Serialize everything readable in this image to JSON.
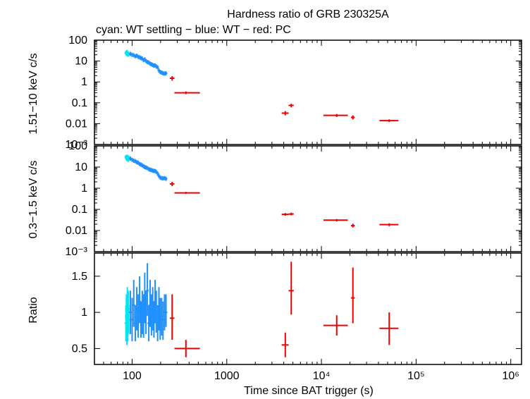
{
  "chart_data": {
    "type": "scatter",
    "title": "Hardness ratio of GRB 230325A",
    "subtitle": "cyan: WT settling − blue: WT − red: PC",
    "xlabel": "Time since BAT trigger (s)",
    "xscale": "log",
    "xlim": [
      40,
      1300000
    ],
    "x_tick_labels": [
      "100",
      "1000",
      "10⁴",
      "10⁵",
      "10⁶"
    ],
    "series_colors": {
      "wt_settling": "#00e5ee",
      "wt": "#1e90ff",
      "pc": "#ee0000"
    },
    "panels": [
      {
        "name": "hard",
        "ylabel": "1.51−10 keV c/s",
        "yscale": "log",
        "ylim": [
          0.001,
          100
        ],
        "y_tick_labels": [
          "100",
          "10",
          "1",
          "0.1",
          "0.01",
          "10⁻³"
        ],
        "wt_settling": [
          [
            86,
            25
          ],
          [
            87,
            22
          ],
          [
            88,
            27
          ],
          [
            89,
            24
          ],
          [
            90,
            20
          ],
          [
            91,
            23
          ],
          [
            92,
            21
          ]
        ],
        "wt": [
          [
            96,
            22
          ],
          [
            100,
            20
          ],
          [
            104,
            19
          ],
          [
            108,
            17
          ],
          [
            112,
            18
          ],
          [
            116,
            16
          ],
          [
            120,
            15
          ],
          [
            124,
            14
          ],
          [
            128,
            13
          ],
          [
            132,
            11
          ],
          [
            136,
            12
          ],
          [
            140,
            10
          ],
          [
            145,
            9
          ],
          [
            150,
            8.5
          ],
          [
            155,
            7.5
          ],
          [
            160,
            7
          ],
          [
            165,
            6.5
          ],
          [
            170,
            6
          ],
          [
            175,
            6.2
          ],
          [
            180,
            5.5
          ],
          [
            186,
            5
          ],
          [
            192,
            3.5
          ],
          [
            198,
            3
          ],
          [
            205,
            2.8
          ],
          [
            212,
            2.6
          ],
          [
            220,
            2.5
          ],
          [
            228,
            2.6
          ]
        ],
        "pc": [
          {
            "x": 265,
            "xlo": 250,
            "xhi": 280,
            "y": 1.5,
            "ylo": 1.15,
            "yhi": 1.9
          },
          {
            "x": 370,
            "xlo": 280,
            "xhi": 520,
            "y": 0.3,
            "ylo": 0.26,
            "yhi": 0.35
          },
          {
            "x": 4150,
            "xlo": 3800,
            "xhi": 4500,
            "y": 0.032,
            "ylo": 0.025,
            "yhi": 0.04
          },
          {
            "x": 4800,
            "xlo": 4500,
            "xhi": 5100,
            "y": 0.075,
            "ylo": 0.06,
            "yhi": 0.09
          },
          {
            "x": 14500,
            "xlo": 10500,
            "xhi": 19000,
            "y": 0.025,
            "ylo": 0.021,
            "yhi": 0.029
          },
          {
            "x": 21500,
            "xlo": 20500,
            "xhi": 22500,
            "y": 0.02,
            "ylo": 0.016,
            "yhi": 0.025
          },
          {
            "x": 52000,
            "xlo": 41000,
            "xhi": 65000,
            "y": 0.014,
            "ylo": 0.012,
            "yhi": 0.016
          }
        ]
      },
      {
        "name": "soft",
        "ylabel": "0.3−1.5 keV c/s",
        "yscale": "log",
        "ylim": [
          0.001,
          100
        ],
        "y_tick_labels": [
          "100",
          "10",
          "1",
          "0.1",
          "0.01",
          "10⁻³"
        ],
        "wt_settling": [
          [
            86,
            30
          ],
          [
            87,
            27
          ],
          [
            88,
            24
          ],
          [
            89,
            31
          ],
          [
            90,
            26
          ],
          [
            91,
            22
          ],
          [
            92,
            28
          ]
        ],
        "wt": [
          [
            96,
            25
          ],
          [
            100,
            22
          ],
          [
            104,
            20
          ],
          [
            108,
            19
          ],
          [
            112,
            17
          ],
          [
            116,
            16
          ],
          [
            120,
            14
          ],
          [
            124,
            13
          ],
          [
            128,
            12
          ],
          [
            132,
            11
          ],
          [
            136,
            10
          ],
          [
            140,
            9.5
          ],
          [
            145,
            9
          ],
          [
            150,
            8
          ],
          [
            155,
            7.5
          ],
          [
            160,
            7.2
          ],
          [
            165,
            6.8
          ],
          [
            170,
            6.5
          ],
          [
            175,
            6.5
          ],
          [
            180,
            6
          ],
          [
            186,
            5
          ],
          [
            192,
            3.8
          ],
          [
            198,
            3.2
          ],
          [
            205,
            3
          ],
          [
            212,
            2.9
          ],
          [
            220,
            3
          ],
          [
            228,
            2.8
          ]
        ],
        "pc": [
          {
            "x": 265,
            "xlo": 250,
            "xhi": 280,
            "y": 1.6,
            "ylo": 1.25,
            "yhi": 2.0
          },
          {
            "x": 370,
            "xlo": 280,
            "xhi": 520,
            "y": 0.6,
            "ylo": 0.54,
            "yhi": 0.67
          },
          {
            "x": 4150,
            "xlo": 3800,
            "xhi": 4500,
            "y": 0.058,
            "ylo": 0.05,
            "yhi": 0.067
          },
          {
            "x": 4800,
            "xlo": 4500,
            "xhi": 5100,
            "y": 0.06,
            "ylo": 0.052,
            "yhi": 0.07
          },
          {
            "x": 14500,
            "xlo": 10500,
            "xhi": 19000,
            "y": 0.031,
            "ylo": 0.027,
            "yhi": 0.035
          },
          {
            "x": 21500,
            "xlo": 20500,
            "xhi": 22500,
            "y": 0.017,
            "ylo": 0.014,
            "yhi": 0.021
          },
          {
            "x": 52000,
            "xlo": 41000,
            "xhi": 65000,
            "y": 0.019,
            "ylo": 0.016,
            "yhi": 0.022
          }
        ]
      },
      {
        "name": "ratio",
        "ylabel": "Ratio",
        "yscale": "linear",
        "ylim": [
          0.28,
          1.82
        ],
        "y_tick_values": [
          0.5,
          1,
          1.5
        ],
        "y_tick_labels": [
          "0.5",
          "1",
          "1.5"
        ],
        "wt_settling": [
          {
            "x": 86,
            "y": 0.85,
            "ylo": 0.6,
            "yhi": 1.1
          },
          {
            "x": 87,
            "y": 0.95,
            "ylo": 0.7,
            "yhi": 1.25
          },
          {
            "x": 88,
            "y": 0.75,
            "ylo": 0.55,
            "yhi": 0.95
          },
          {
            "x": 89,
            "y": 1.1,
            "ylo": 0.85,
            "yhi": 1.35
          },
          {
            "x": 90,
            "y": 0.8,
            "ylo": 0.6,
            "yhi": 1.0
          },
          {
            "x": 91,
            "y": 1.05,
            "ylo": 0.8,
            "yhi": 1.3
          },
          {
            "x": 92,
            "y": 0.9,
            "ylo": 0.7,
            "yhi": 1.1
          }
        ],
        "wt": [
          {
            "x": 96,
            "y": 1.0,
            "ylo": 0.7,
            "yhi": 1.3
          },
          {
            "x": 100,
            "y": 0.9,
            "ylo": 0.6,
            "yhi": 1.2
          },
          {
            "x": 104,
            "y": 1.1,
            "ylo": 0.8,
            "yhi": 1.45
          },
          {
            "x": 108,
            "y": 0.85,
            "ylo": 0.6,
            "yhi": 1.1
          },
          {
            "x": 112,
            "y": 1.05,
            "ylo": 0.75,
            "yhi": 1.35
          },
          {
            "x": 116,
            "y": 0.95,
            "ylo": 0.65,
            "yhi": 1.25
          },
          {
            "x": 120,
            "y": 1.15,
            "ylo": 0.85,
            "yhi": 1.5
          },
          {
            "x": 124,
            "y": 0.9,
            "ylo": 0.65,
            "yhi": 1.15
          },
          {
            "x": 128,
            "y": 1.0,
            "ylo": 0.7,
            "yhi": 1.3
          },
          {
            "x": 132,
            "y": 0.95,
            "ylo": 0.65,
            "yhi": 1.25
          },
          {
            "x": 136,
            "y": 1.2,
            "ylo": 0.85,
            "yhi": 1.55
          },
          {
            "x": 140,
            "y": 1.0,
            "ylo": 0.7,
            "yhi": 1.3
          },
          {
            "x": 145,
            "y": 1.3,
            "ylo": 0.95,
            "yhi": 1.68
          },
          {
            "x": 150,
            "y": 0.85,
            "ylo": 0.6,
            "yhi": 1.1
          },
          {
            "x": 155,
            "y": 1.1,
            "ylo": 0.8,
            "yhi": 1.45
          },
          {
            "x": 160,
            "y": 0.95,
            "ylo": 0.68,
            "yhi": 1.25
          },
          {
            "x": 165,
            "y": 1.05,
            "ylo": 0.75,
            "yhi": 1.35
          },
          {
            "x": 170,
            "y": 0.9,
            "ylo": 0.65,
            "yhi": 1.15
          },
          {
            "x": 175,
            "y": 1.15,
            "ylo": 0.85,
            "yhi": 1.45
          },
          {
            "x": 180,
            "y": 1.0,
            "ylo": 0.72,
            "yhi": 1.3
          },
          {
            "x": 186,
            "y": 0.85,
            "ylo": 0.6,
            "yhi": 1.1
          },
          {
            "x": 192,
            "y": 1.05,
            "ylo": 0.75,
            "yhi": 1.35
          },
          {
            "x": 198,
            "y": 0.9,
            "ylo": 0.62,
            "yhi": 1.2
          },
          {
            "x": 205,
            "y": 0.95,
            "ylo": 0.68,
            "yhi": 1.2
          },
          {
            "x": 212,
            "y": 0.9,
            "ylo": 0.62,
            "yhi": 1.15
          },
          {
            "x": 220,
            "y": 1.0,
            "ylo": 0.75,
            "yhi": 1.25
          },
          {
            "x": 228,
            "y": 1.0,
            "ylo": 0.8,
            "yhi": 1.25
          }
        ],
        "pc": [
          {
            "x": 265,
            "xlo": 250,
            "xhi": 280,
            "y": 0.92,
            "ylo": 0.62,
            "yhi": 1.25
          },
          {
            "x": 370,
            "xlo": 280,
            "xhi": 520,
            "y": 0.5,
            "ylo": 0.38,
            "yhi": 0.62
          },
          {
            "x": 4150,
            "xlo": 3800,
            "xhi": 4500,
            "y": 0.55,
            "ylo": 0.38,
            "yhi": 0.72
          },
          {
            "x": 4800,
            "xlo": 4500,
            "xhi": 5100,
            "y": 1.3,
            "ylo": 0.97,
            "yhi": 1.7
          },
          {
            "x": 14500,
            "xlo": 10500,
            "xhi": 19000,
            "y": 0.82,
            "ylo": 0.68,
            "yhi": 0.96
          },
          {
            "x": 21500,
            "xlo": 20500,
            "xhi": 22500,
            "y": 1.2,
            "ylo": 0.85,
            "yhi": 1.62
          },
          {
            "x": 52000,
            "xlo": 41000,
            "xhi": 65000,
            "y": 0.78,
            "ylo": 0.55,
            "yhi": 1.0
          }
        ]
      }
    ]
  }
}
